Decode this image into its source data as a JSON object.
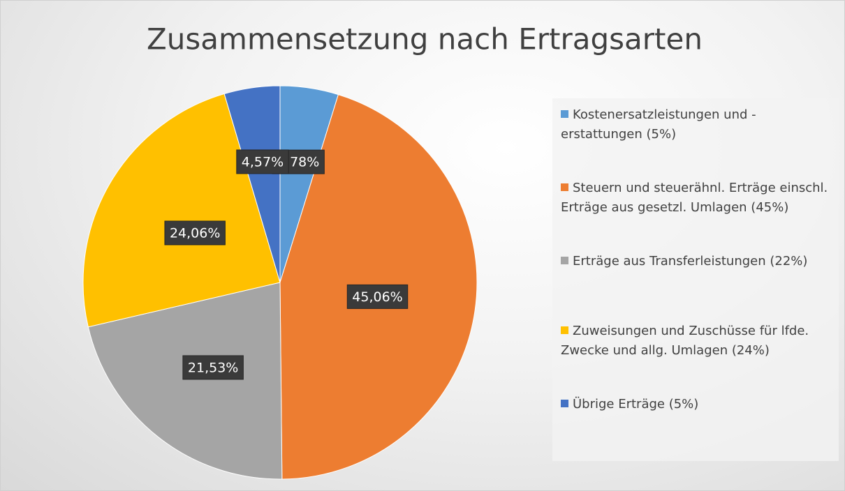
{
  "chart_data": {
    "type": "pie",
    "title": "Zusammensetzung nach Ertragsarten",
    "categories": [
      "Kostenersatzleistungen und -erstattungen (5%)",
      "Steuern und steuerähnl. Erträge einschl. Erträge aus gesetzl. Umlagen (45%)",
      "Erträge aus Transferleistungen (22%)",
      "Zuweisungen und Zuschüsse für lfde. Zwecke und allg. Umlagen (24%)",
      "Übrige Erträge (5%)"
    ],
    "values": [
      4.78,
      45.06,
      21.53,
      24.06,
      4.57
    ],
    "value_labels": [
      "4,78%",
      "45,06%",
      "21,53%",
      "24,06%",
      "4,57%"
    ],
    "colors": [
      "#5b9bd5",
      "#ed7d31",
      "#a5a5a5",
      "#ffc000",
      "#4472c4"
    ],
    "legend": "right"
  }
}
